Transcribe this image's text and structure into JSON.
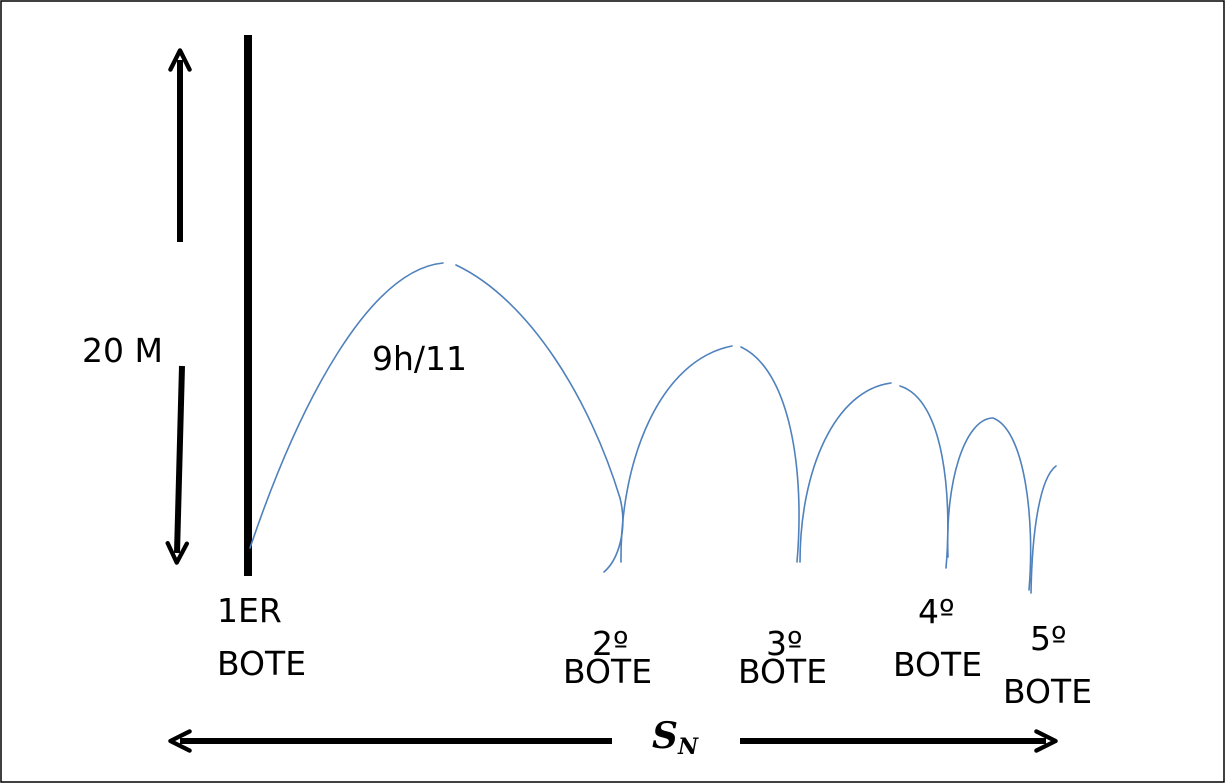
{
  "colors": {
    "frame": "#000000",
    "arrows": "#000000",
    "wall": "#000000",
    "trajectory": "#4f81bd",
    "background": "#ffffff"
  },
  "labels": {
    "height": "20 M",
    "ratio": "9h/11",
    "distance_symbol": "S",
    "distance_subscript": "N"
  },
  "bounces": [
    {
      "line1": "1ER",
      "line2": "BOTE"
    },
    {
      "line1": "2º",
      "line2": "BOTE"
    },
    {
      "line1": "3º",
      "line2": "BOTE"
    },
    {
      "line1": "4º",
      "line2": "BOTE"
    },
    {
      "line1": "5º",
      "line2": "BOTE"
    }
  ]
}
